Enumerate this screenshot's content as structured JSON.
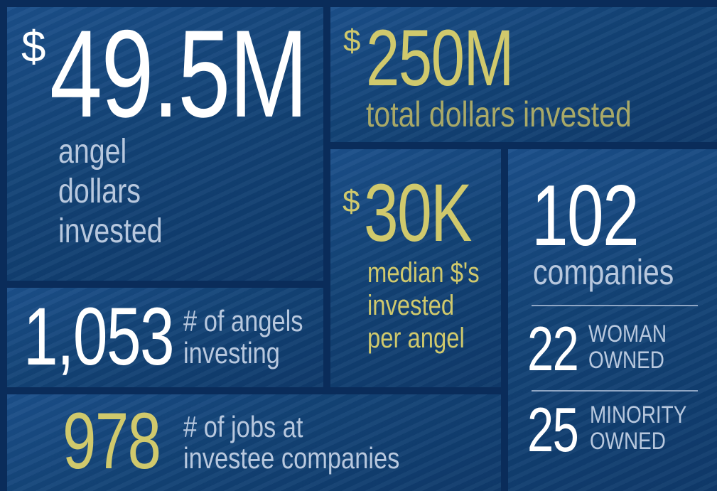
{
  "tiles": [
    {
      "prefix": "$",
      "value": "49.5M",
      "label": [
        "angel",
        "dollars",
        "invested"
      ]
    },
    {
      "prefix": "$",
      "value": "250M",
      "label": [
        "total dollars invested"
      ]
    },
    {
      "prefix": "$",
      "value": "30K",
      "label": [
        "median $'s",
        "invested",
        "per angel"
      ]
    },
    {
      "value": "102",
      "label": [
        "companies"
      ]
    },
    {
      "value": "22",
      "label": [
        "WOMAN",
        "OWNED"
      ]
    },
    {
      "value": "25",
      "label": [
        "MINORITY",
        "OWNED"
      ]
    },
    {
      "value": "1,053",
      "label": [
        "# of angels",
        "investing"
      ]
    },
    {
      "value": "978",
      "label": [
        "# of jobs at",
        "investee companies"
      ]
    }
  ]
}
